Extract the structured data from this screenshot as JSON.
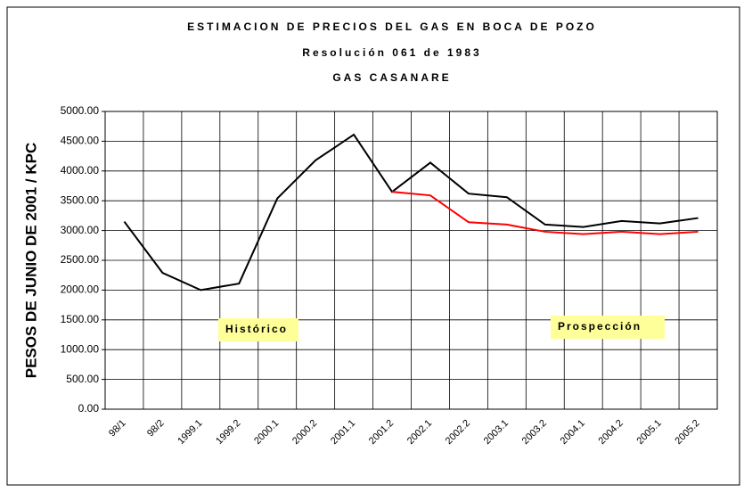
{
  "chart_data": {
    "type": "line",
    "title": "ESTIMACION DE PRECIOS DEL GAS EN BOCA DE POZO",
    "subtitle": [
      "Resolución 061 de 1983",
      "GAS CASANARE"
    ],
    "y_label": "PESOS DE JUNIO DE 2001 / KPC",
    "annotations": [
      "Histórico",
      "Prospección"
    ],
    "categories": [
      "98/1",
      "98/2",
      "1999.1",
      "1999.2",
      "2000.1",
      "2000.2",
      "2001.1",
      "2001.2",
      "2002.1",
      "2002.2",
      "2003.1",
      "2003.2",
      "2004.1",
      "2004.2",
      "2005.1",
      "2005.2"
    ],
    "series": [
      {
        "color": "#000000",
        "values": [
          3150,
          2290,
          2000,
          2110,
          3540,
          4180,
          4610,
          3650,
          4140,
          3620,
          3560,
          3100,
          3060,
          3160,
          3120,
          3210
        ]
      },
      {
        "color": "#ff0000",
        "values": [
          null,
          null,
          null,
          null,
          null,
          null,
          null,
          3650,
          3590,
          3140,
          3100,
          2980,
          2940,
          2980,
          2940,
          2980
        ]
      }
    ],
    "ylim": [
      0,
      5000
    ],
    "yticks": [
      {
        "value": 0,
        "label": "0.00"
      },
      {
        "value": 500,
        "label": "500.00"
      },
      {
        "value": 1000,
        "label": "1000.00"
      },
      {
        "value": 1500,
        "label": "1500.00"
      },
      {
        "value": 2000,
        "label": "2000.00"
      },
      {
        "value": 2500,
        "label": "2500.00"
      },
      {
        "value": 3000,
        "label": "3000.00"
      },
      {
        "value": 3500,
        "label": "3500.00"
      },
      {
        "value": 4000,
        "label": "4000.00"
      },
      {
        "value": 4500,
        "label": "4500.00"
      },
      {
        "value": 5000,
        "label": "5000.00"
      }
    ],
    "grid": true
  }
}
